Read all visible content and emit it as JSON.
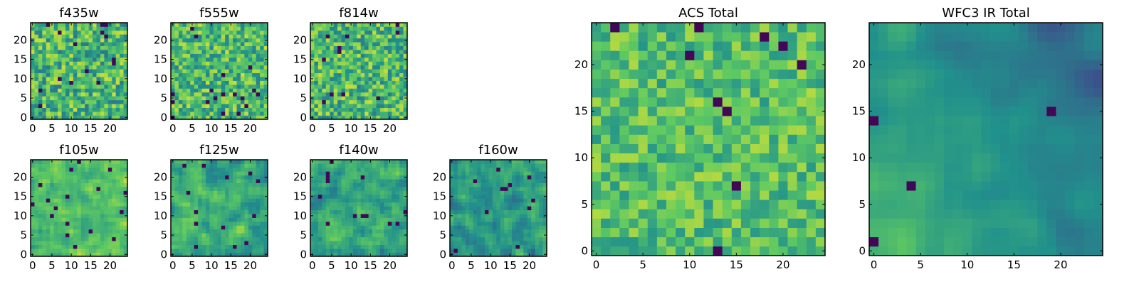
{
  "figure": {
    "colormap": "viridis",
    "colormap_stops": [
      "#440154",
      "#3b528b",
      "#21918c",
      "#5ec962",
      "#fde725"
    ]
  },
  "chart_data": [
    {
      "type": "heatmap",
      "title": "f435w",
      "grid": [
        25,
        25
      ],
      "xlim": [
        -0.5,
        24.5
      ],
      "ylim": [
        -0.5,
        24.5
      ],
      "xticks": [
        0,
        5,
        10,
        15,
        20
      ],
      "yticks": [
        0,
        5,
        10,
        15,
        20
      ],
      "value_range": [
        0,
        1
      ],
      "pattern": {
        "seed": 11,
        "mean": 0.66,
        "noise": 0.26,
        "smooth": 0,
        "dark_spots": 0.035
      }
    },
    {
      "type": "heatmap",
      "title": "f555w",
      "grid": [
        25,
        25
      ],
      "xlim": [
        -0.5,
        24.5
      ],
      "ylim": [
        -0.5,
        24.5
      ],
      "xticks": [
        0,
        5,
        10,
        15,
        20
      ],
      "yticks": [
        0,
        5,
        10,
        15,
        20
      ],
      "value_range": [
        0,
        1
      ],
      "pattern": {
        "seed": 23,
        "mean": 0.68,
        "noise": 0.24,
        "smooth": 0,
        "dark_spots": 0.025
      }
    },
    {
      "type": "heatmap",
      "title": "f814w",
      "grid": [
        25,
        25
      ],
      "xlim": [
        -0.5,
        24.5
      ],
      "ylim": [
        -0.5,
        24.5
      ],
      "xticks": [
        0,
        5,
        10,
        15,
        20
      ],
      "yticks": [
        0,
        5,
        10,
        15,
        20
      ],
      "value_range": [
        0,
        1
      ],
      "pattern": {
        "seed": 37,
        "mean": 0.67,
        "noise": 0.25,
        "smooth": 0,
        "dark_spots": 0.02
      }
    },
    {
      "type": "heatmap",
      "title": "f105w",
      "grid": [
        25,
        25
      ],
      "xlim": [
        -0.5,
        24.5
      ],
      "ylim": [
        -0.5,
        24.5
      ],
      "xticks": [
        0,
        5,
        10,
        15,
        20
      ],
      "yticks": [
        0,
        5,
        10,
        15,
        20
      ],
      "value_range": [
        0,
        1
      ],
      "pattern": {
        "seed": 41,
        "mean": 0.7,
        "noise": 0.2,
        "smooth": 1,
        "dark_spots": 0.02
      }
    },
    {
      "type": "heatmap",
      "title": "f125w",
      "grid": [
        25,
        25
      ],
      "xlim": [
        -0.5,
        24.5
      ],
      "ylim": [
        -0.5,
        24.5
      ],
      "xticks": [
        0,
        5,
        10,
        15,
        20
      ],
      "yticks": [
        0,
        5,
        10,
        15,
        20
      ],
      "value_range": [
        0,
        1
      ],
      "pattern": {
        "seed": 53,
        "mean": 0.62,
        "noise": 0.22,
        "smooth": 1,
        "dark_spots": 0.025
      }
    },
    {
      "type": "heatmap",
      "title": "f140w",
      "grid": [
        25,
        25
      ],
      "xlim": [
        -0.5,
        24.5
      ],
      "ylim": [
        -0.5,
        24.5
      ],
      "xticks": [
        0,
        5,
        10,
        15,
        20
      ],
      "yticks": [
        0,
        5,
        10,
        15,
        20
      ],
      "value_range": [
        0,
        1
      ],
      "pattern": {
        "seed": 67,
        "mean": 0.6,
        "noise": 0.22,
        "smooth": 1,
        "dark_spots": 0.02
      }
    },
    {
      "type": "heatmap",
      "title": "f160w",
      "grid": [
        25,
        25
      ],
      "xlim": [
        -0.5,
        24.5
      ],
      "ylim": [
        -0.5,
        24.5
      ],
      "xticks": [
        0,
        5,
        10,
        15,
        20
      ],
      "yticks": [
        0,
        5,
        10,
        15,
        20
      ],
      "value_range": [
        0,
        1
      ],
      "pattern": {
        "seed": 79,
        "mean": 0.55,
        "noise": 0.22,
        "smooth": 1,
        "dark_spots": 0.025
      }
    },
    {
      "type": "heatmap",
      "title": "ACS Total",
      "grid": [
        25,
        25
      ],
      "xlim": [
        -0.5,
        24.5
      ],
      "ylim": [
        -0.5,
        24.5
      ],
      "xticks": [
        0,
        5,
        10,
        15,
        20
      ],
      "yticks": [
        0,
        5,
        10,
        15,
        20
      ],
      "value_range": [
        0,
        1
      ],
      "pattern": {
        "seed": 97,
        "mean": 0.7,
        "noise": 0.18,
        "smooth": 0,
        "dark_spots": 0.02
      }
    },
    {
      "type": "heatmap",
      "title": "WFC3 IR Total",
      "grid": [
        25,
        25
      ],
      "xlim": [
        -0.5,
        24.5
      ],
      "ylim": [
        -0.5,
        24.5
      ],
      "xticks": [
        0,
        5,
        10,
        15,
        20
      ],
      "yticks": [
        0,
        5,
        10,
        15,
        20
      ],
      "value_range": [
        0,
        1
      ],
      "pattern": {
        "seed": 113,
        "mean": 0.5,
        "noise": 0.1,
        "smooth": 2,
        "gradient_to_lower_left": 0.35,
        "dark_spots": 0.01
      }
    }
  ]
}
